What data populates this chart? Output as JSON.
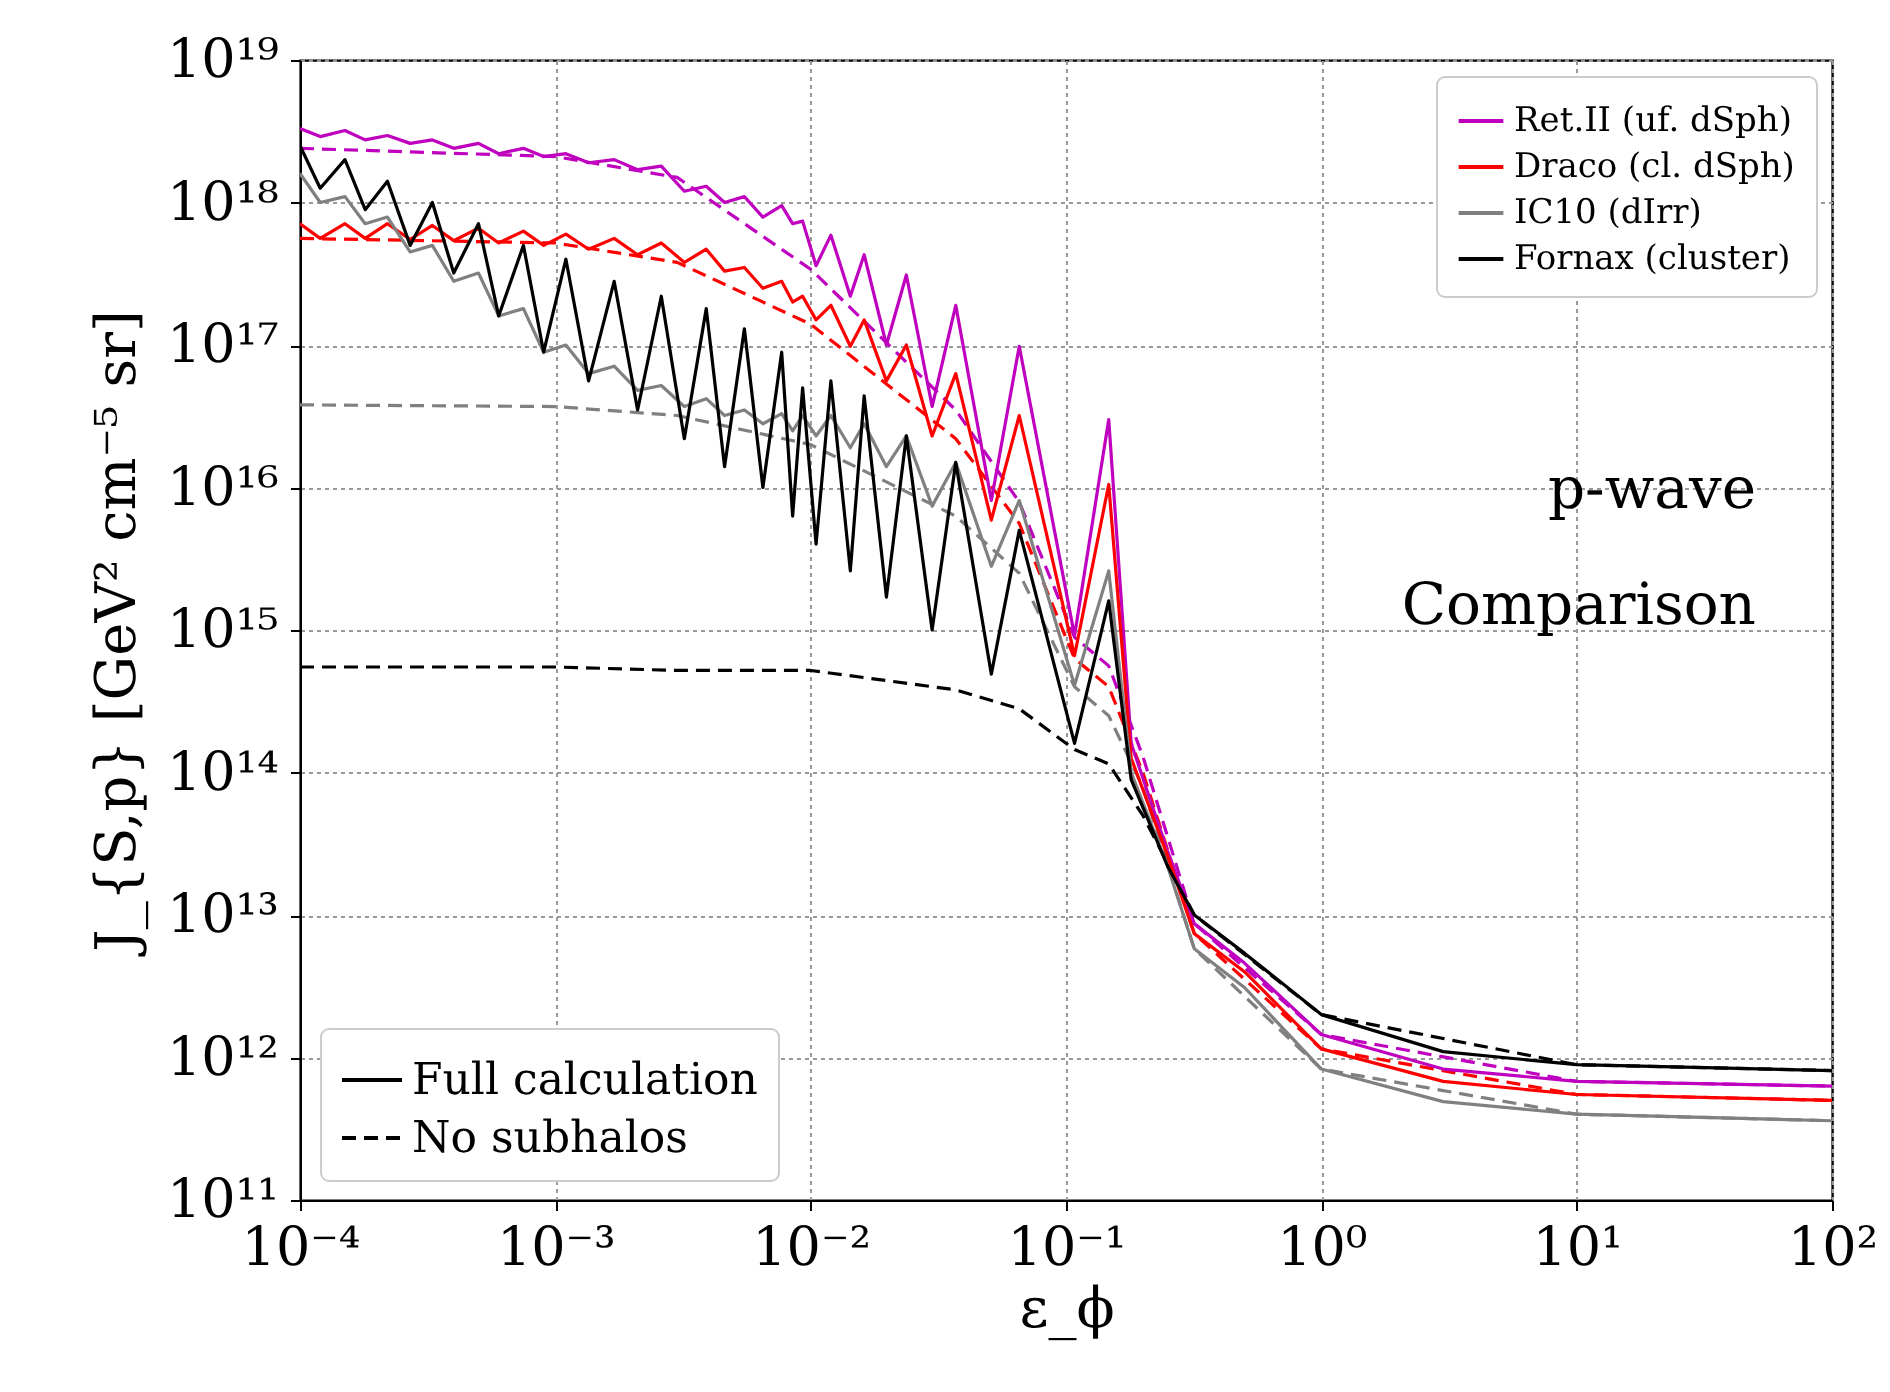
{
  "chart_data": {
    "type": "line",
    "xlabel": "ε_ϕ",
    "ylabel": "J_{S,p} [GeV² cm⁻⁵ sr]",
    "log": "xy",
    "grid": true,
    "legend": "top right",
    "marker": "none",
    "xlim": [
      0.0001,
      100
    ],
    "ylim": [
      100000000000.0,
      1e+19
    ],
    "xticks": [
      {
        "value": 0.0001,
        "label": "10⁻⁴"
      },
      {
        "value": 0.001,
        "label": "10⁻³"
      },
      {
        "value": 0.01,
        "label": "10⁻²"
      },
      {
        "value": 0.1,
        "label": "10⁻¹"
      },
      {
        "value": 1,
        "label": "10⁰"
      },
      {
        "value": 10,
        "label": "10¹"
      },
      {
        "value": 100,
        "label": "10²"
      }
    ],
    "yticks": [
      {
        "value": 100000000000.0,
        "label": "10¹¹"
      },
      {
        "value": 1000000000000.0,
        "label": "10¹²"
      },
      {
        "value": 10000000000000.0,
        "label": "10¹³"
      },
      {
        "value": 100000000000000.0,
        "label": "10¹⁴"
      },
      {
        "value": 1000000000000000.0,
        "label": "10¹⁵"
      },
      {
        "value": 1e+16,
        "label": "10¹⁶"
      },
      {
        "value": 1e+17,
        "label": "10¹⁷"
      },
      {
        "value": 1e+18,
        "label": "10¹⁸"
      },
      {
        "value": 1e+19,
        "label": "10¹⁹"
      }
    ],
    "annotations": [
      "p-wave",
      "Comparison",
      "Full calculation",
      "No subhalos"
    ],
    "series": [
      {
        "color": "#bf00bf",
        "line_style": "dashed",
        "x": [
          0.0001,
          0.001,
          0.003,
          0.01,
          0.037,
          0.0656,
          0.108,
          0.147,
          0.2,
          0.318,
          1,
          10,
          100
        ],
        "values": [
          2.4e+18,
          2.1e+18,
          1.5e+18,
          3.4e+17,
          3.5e+16,
          7900000000000000.0,
          890000000000000.0,
          560000000000000.0,
          130000000000000.0,
          8700000000000.0,
          1450000000000.0,
          680000000000.0,
          630000000000.0
        ]
      },
      {
        "color": "#ff0000",
        "line_style": "dashed",
        "x": [
          0.0001,
          0.001,
          0.003,
          0.01,
          0.037,
          0.0656,
          0.108,
          0.147,
          0.2,
          0.318,
          1,
          10,
          100
        ],
        "values": [
          5.6e+17,
          5.2e+17,
          3.8e+17,
          1.4e+17,
          2.2e+16,
          5600000000000000.0,
          630000000000000.0,
          400000000000000.0,
          100000000000000.0,
          7400000000000.0,
          1150000000000.0,
          550000000000.0,
          500000000000.0
        ]
      },
      {
        "color": "#808080",
        "line_style": "dashed",
        "x": [
          0.0001,
          0.001,
          0.003,
          0.01,
          0.037,
          0.0656,
          0.108,
          0.147,
          0.2,
          0.318,
          1,
          10,
          100
        ],
        "values": [
          3.8e+16,
          3.7e+16,
          3.2e+16,
          2e+16,
          6300000000000000.0,
          2500000000000000.0,
          400000000000000.0,
          250000000000000.0,
          79000000000000.0,
          5800000000000.0,
          830000000000.0,
          400000000000.0,
          360000000000.0
        ]
      },
      {
        "color": "#000000",
        "line_style": "dashed",
        "x": [
          0.0001,
          0.001,
          0.003,
          0.01,
          0.037,
          0.0656,
          0.108,
          0.147,
          0.2,
          0.318,
          1,
          10,
          100
        ],
        "values": [
          550000000000000.0,
          550000000000000.0,
          520000000000000.0,
          520000000000000.0,
          380000000000000.0,
          280000000000000.0,
          145000000000000.0,
          115000000000000.0,
          50000000000000.0,
          10000000000000.0,
          2000000000000.0,
          890000000000.0,
          810000000000.0
        ]
      },
      {
        "name": "Ret.II (uf. dSph)",
        "color": "#bf00bf",
        "line_style": "solid",
        "x": [
          0.0001,
          0.00012,
          0.00015,
          0.00018,
          0.00022,
          0.00027,
          0.00033,
          0.0004,
          0.0005,
          0.0006,
          0.00075,
          0.0009,
          0.0011,
          0.00135,
          0.0017,
          0.0021,
          0.0026,
          0.0032,
          0.0039,
          0.0046,
          0.0055,
          0.0065,
          0.0077,
          0.0085,
          0.0093,
          0.0105,
          0.012,
          0.0143,
          0.0162,
          0.0198,
          0.0237,
          0.0299,
          0.037,
          0.051,
          0.0656,
          0.108,
          0.147,
          0.18,
          0.25,
          0.318,
          0.5,
          1,
          3,
          10,
          100
        ],
        "values": [
          3.3e+18,
          2.9e+18,
          3.2e+18,
          2.75e+18,
          2.95e+18,
          2.6e+18,
          2.75e+18,
          2.4e+18,
          2.6e+18,
          2.2e+18,
          2.4e+18,
          2.1e+18,
          2.2e+18,
          1.9e+18,
          2e+18,
          1.7e+18,
          1.8e+18,
          1.2e+18,
          1.3e+18,
          1e+18,
          1.1e+18,
          7.9e+17,
          9.5e+17,
          7.1e+17,
          7.4e+17,
          3.6e+17,
          5.9e+17,
          2.2e+17,
          4.3e+17,
          1e+17,
          3.1e+17,
          3.7e+16,
          1.9e+17,
          8100000000000000.0,
          9.8e+16,
          910000000000000.0,
          3e+16,
          160000000000000.0,
          28000000000000.0,
          8700000000000.0,
          4600000000000.0,
          1450000000000.0,
          830000000000.0,
          680000000000.0,
          630000000000.0
        ]
      },
      {
        "name": "Draco (cl. dSph)",
        "color": "#ff0000",
        "line_style": "solid",
        "x": [
          0.0001,
          0.00012,
          0.00015,
          0.00018,
          0.00022,
          0.00027,
          0.00033,
          0.0004,
          0.0005,
          0.0006,
          0.00075,
          0.0009,
          0.0011,
          0.00135,
          0.0017,
          0.0021,
          0.0026,
          0.0032,
          0.0039,
          0.0046,
          0.0055,
          0.0065,
          0.0077,
          0.0085,
          0.0093,
          0.0105,
          0.012,
          0.0143,
          0.0162,
          0.0198,
          0.0237,
          0.0299,
          0.037,
          0.051,
          0.0656,
          0.108,
          0.147,
          0.18,
          0.25,
          0.318,
          0.5,
          1,
          3,
          10,
          100
        ],
        "values": [
          7.1e+17,
          5.6e+17,
          7.1e+17,
          5.6e+17,
          7.1e+17,
          5.5e+17,
          6.9e+17,
          5.4e+17,
          6.6e+17,
          5.2e+17,
          6.3e+17,
          5e+17,
          6e+17,
          4.7e+17,
          5.6e+17,
          4.3e+17,
          5.2e+17,
          3.8e+17,
          4.7e+17,
          3.3e+17,
          3.5e+17,
          2.5e+17,
          2.8e+17,
          2e+17,
          2.2e+17,
          1.5e+17,
          1.9e+17,
          9.8e+16,
          1.5e+17,
          5.6e+16,
          1e+17,
          2.3e+16,
          6.3e+16,
          5900000000000000.0,
          3.2e+16,
          660000000000000.0,
          1.05e+16,
          126000000000000.0,
          26000000000000.0,
          7400000000000.0,
          4000000000000.0,
          1150000000000.0,
          680000000000.0,
          550000000000.0,
          500000000000.0
        ]
      },
      {
        "name": "IC10 (dIrr)",
        "color": "#808080",
        "line_style": "solid",
        "x": [
          0.0001,
          0.00012,
          0.00015,
          0.00018,
          0.00022,
          0.00027,
          0.00033,
          0.0004,
          0.0005,
          0.0006,
          0.00075,
          0.0009,
          0.0011,
          0.00135,
          0.0017,
          0.0021,
          0.0026,
          0.0032,
          0.0039,
          0.0046,
          0.0055,
          0.0065,
          0.0077,
          0.0085,
          0.0093,
          0.0105,
          0.012,
          0.0143,
          0.0162,
          0.0198,
          0.0237,
          0.0299,
          0.037,
          0.051,
          0.0656,
          0.108,
          0.147,
          0.18,
          0.25,
          0.318,
          0.5,
          1,
          3,
          10,
          100
        ],
        "values": [
          1.6e+18,
          1e+18,
          1.1e+18,
          7.1e+17,
          7.9e+17,
          4.5e+17,
          5e+17,
          2.8e+17,
          3.2e+17,
          1.6e+17,
          1.8e+17,
          8.9e+16,
          1e+17,
          6.3e+16,
          7.1e+16,
          4.8e+16,
          5.2e+16,
          3.7e+16,
          4.2e+16,
          3.2e+16,
          3.5e+16,
          2.8e+16,
          3.3e+16,
          2.5e+16,
          3.2e+16,
          2.3e+16,
          3.2e+16,
          1.9e+16,
          2.8e+16,
          1.4e+16,
          2.3e+16,
          7400000000000000.0,
          1.5e+16,
          2800000000000000.0,
          8100000000000000.0,
          410000000000000.0,
          2600000000000000.0,
          100000000000000.0,
          22000000000000.0,
          5800000000000.0,
          3100000000000.0,
          830000000000.0,
          490000000000.0,
          400000000000.0,
          360000000000.0
        ]
      },
      {
        "name": "Fornax (cluster)",
        "color": "#000000",
        "line_style": "solid",
        "x": [
          0.0001,
          0.00012,
          0.00015,
          0.00018,
          0.00022,
          0.00027,
          0.00033,
          0.0004,
          0.0005,
          0.0006,
          0.00075,
          0.0009,
          0.0011,
          0.00135,
          0.0017,
          0.0021,
          0.0026,
          0.0032,
          0.0039,
          0.0046,
          0.0055,
          0.0065,
          0.0077,
          0.0085,
          0.0093,
          0.0105,
          0.012,
          0.0143,
          0.0162,
          0.0198,
          0.0237,
          0.0299,
          0.037,
          0.051,
          0.0656,
          0.108,
          0.147,
          0.18,
          0.25,
          0.318,
          0.5,
          1,
          3,
          10,
          100
        ],
        "values": [
          2.5e+18,
          1.26e+18,
          2e+18,
          8.9e+17,
          1.41e+18,
          5e+17,
          1e+18,
          3.2e+17,
          7.1e+17,
          1.6e+17,
          5e+17,
          8.9e+16,
          4e+17,
          5.6e+16,
          2.8e+17,
          3.5e+16,
          2.2e+17,
          2.2e+16,
          1.8e+17,
          1.4e+16,
          1.3e+17,
          1e+16,
          8.9e+16,
          6300000000000000.0,
          5e+16,
          4000000000000000.0,
          5.6e+16,
          2600000000000000.0,
          4.4e+16,
          1700000000000000.0,
          2.3e+16,
          1000000000000000.0,
          1.5e+16,
          490000000000000.0,
          5000000000000000.0,
          160000000000000.0,
          1600000000000000.0,
          89000000000000.0,
          22000000000000.0,
          10000000000000.0,
          5400000000000.0,
          2000000000000.0,
          1100000000000.0,
          890000000000.0,
          810000000000.0
        ]
      }
    ]
  }
}
